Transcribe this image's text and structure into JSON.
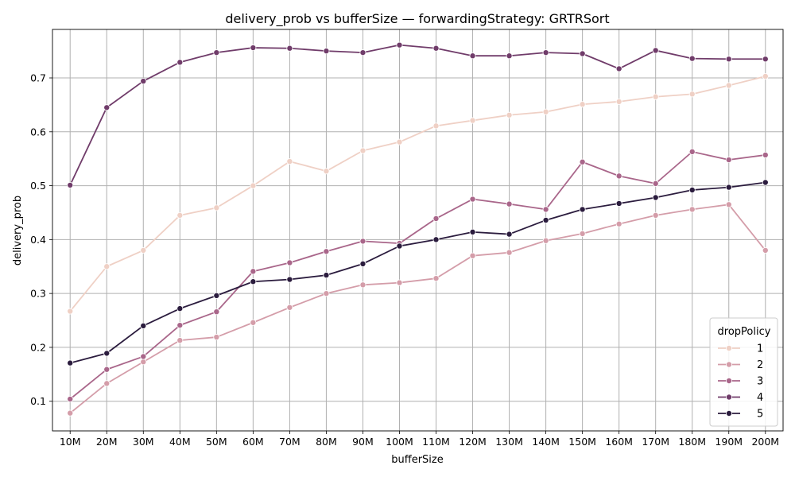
{
  "chart_data": {
    "type": "line",
    "title": "delivery_prob vs bufferSize — forwardingStrategy: GRTRSort",
    "xlabel": "bufferSize",
    "ylabel": "delivery_prob",
    "categories": [
      "10M",
      "20M",
      "30M",
      "40M",
      "50M",
      "60M",
      "70M",
      "80M",
      "90M",
      "100M",
      "110M",
      "120M",
      "130M",
      "140M",
      "150M",
      "160M",
      "170M",
      "180M",
      "190M",
      "200M"
    ],
    "ylim": [
      0.045,
      0.79
    ],
    "yticks": [
      "0.1",
      "0.2",
      "0.3",
      "0.4",
      "0.5",
      "0.6",
      "0.7"
    ],
    "grid": true,
    "legend": {
      "title": "dropPolicy",
      "position": "lower-right"
    },
    "series": [
      {
        "name": "1",
        "color": "#efd0c5",
        "values": [
          0.267,
          0.35,
          0.38,
          0.445,
          0.459,
          0.5,
          0.545,
          0.527,
          0.565,
          0.581,
          0.611,
          0.621,
          0.631,
          0.637,
          0.651,
          0.656,
          0.665,
          0.67,
          0.686,
          0.703
        ]
      },
      {
        "name": "2",
        "color": "#d49da9",
        "values": [
          0.078,
          0.133,
          0.173,
          0.213,
          0.219,
          0.246,
          0.274,
          0.3,
          0.316,
          0.32,
          0.328,
          0.37,
          0.376,
          0.398,
          0.411,
          0.429,
          0.445,
          0.456,
          0.465,
          0.38
        ]
      },
      {
        "name": "3",
        "color": "#a9668a",
        "values": [
          0.104,
          0.159,
          0.183,
          0.241,
          0.266,
          0.341,
          0.357,
          0.378,
          0.397,
          0.393,
          0.439,
          0.475,
          0.466,
          0.456,
          0.544,
          0.518,
          0.504,
          0.563,
          0.548,
          0.557
        ]
      },
      {
        "name": "4",
        "color": "#703c6a",
        "values": [
          0.501,
          0.645,
          0.694,
          0.729,
          0.747,
          0.756,
          0.755,
          0.75,
          0.747,
          0.761,
          0.755,
          0.741,
          0.741,
          0.747,
          0.745,
          0.717,
          0.751,
          0.736,
          0.735,
          0.735
        ]
      },
      {
        "name": "5",
        "color": "#2b1c3e",
        "values": [
          0.171,
          0.189,
          0.24,
          0.272,
          0.296,
          0.322,
          0.326,
          0.334,
          0.355,
          0.388,
          0.4,
          0.414,
          0.41,
          0.436,
          0.456,
          0.467,
          0.478,
          0.492,
          0.497,
          0.506
        ]
      }
    ]
  }
}
